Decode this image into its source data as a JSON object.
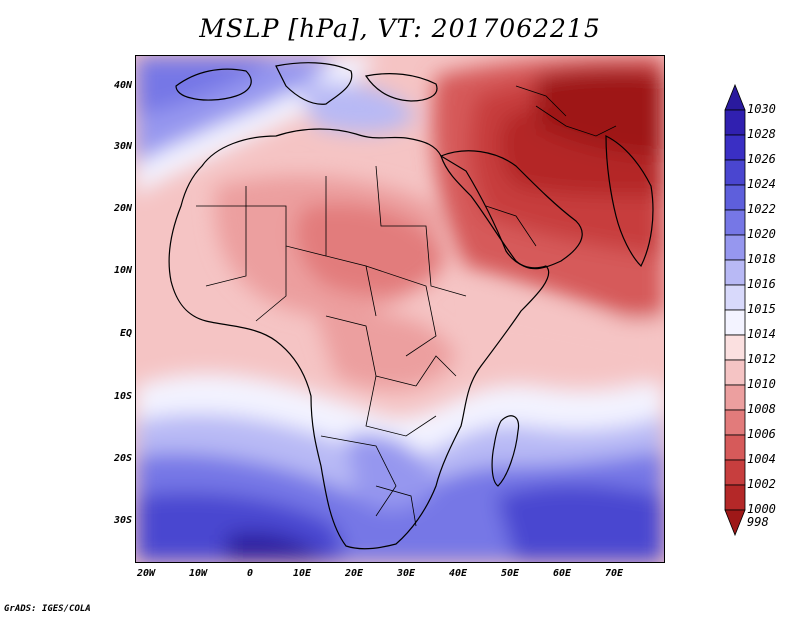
{
  "title": "MSLP [hPa], VT: 2017062215",
  "credit": "GrADS: IGES/COLA",
  "y_axis_labels": [
    "40N",
    "30N",
    "20N",
    "10N",
    "EQ",
    "10S",
    "20S",
    "30S"
  ],
  "x_axis_labels": [
    "20W",
    "10W",
    "0",
    "10E",
    "20E",
    "30E",
    "40E",
    "50E",
    "60E",
    "70E"
  ],
  "colorbar": {
    "levels": [
      "1030",
      "1028",
      "1026",
      "1024",
      "1022",
      "1020",
      "1018",
      "1016",
      "1015",
      "1014",
      "1012",
      "1010",
      "1008",
      "1006",
      "1004",
      "1002",
      "1000",
      "998"
    ],
    "colors": [
      "#2a1a9e",
      "#3020b0",
      "#3a2fc4",
      "#4a46d0",
      "#5e5fdc",
      "#7677e6",
      "#9697ef",
      "#b8b9f5",
      "#d8d9fb",
      "#f3f3ff",
      "#fbe0e0",
      "#f5c4c4",
      "#ec9f9f",
      "#e27b7b",
      "#d65a5a",
      "#c73e3e",
      "#b42828",
      "#9e1818"
    ]
  },
  "map": {
    "lon_range": [
      -22,
      80
    ],
    "lat_range": [
      -37,
      45
    ]
  }
}
